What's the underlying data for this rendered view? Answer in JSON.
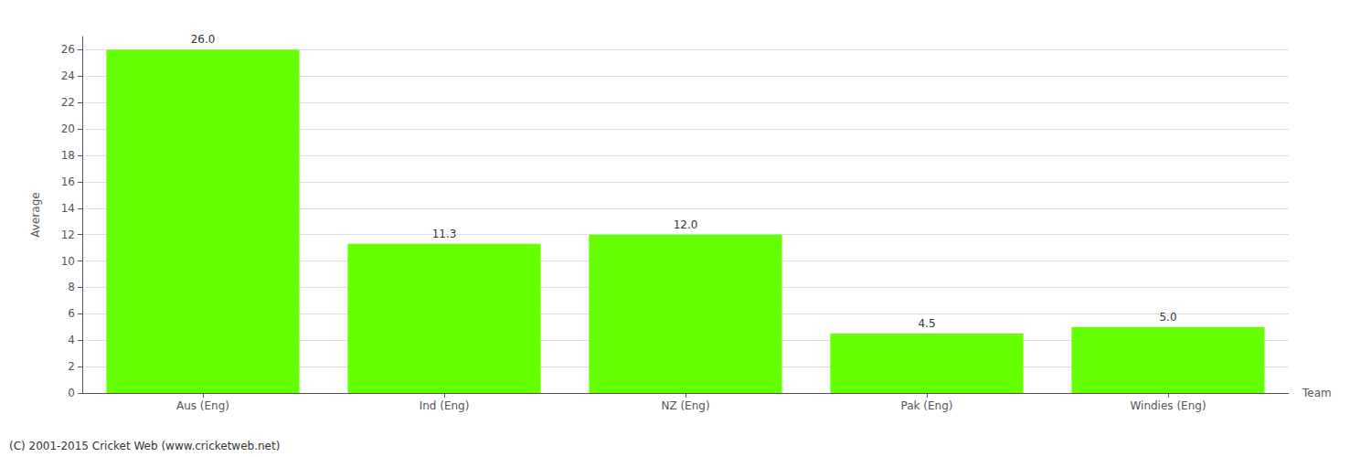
{
  "chart_data": {
    "type": "bar",
    "categories": [
      "Aus (Eng)",
      "Ind (Eng)",
      "NZ (Eng)",
      "Pak (Eng)",
      "Windies (Eng)"
    ],
    "values": [
      26.0,
      11.3,
      12.0,
      4.5,
      5.0
    ],
    "value_labels": [
      "26.0",
      "11.3",
      "12.0",
      "4.5",
      "5.0"
    ],
    "data_labels": true,
    "color": "#66ff00",
    "xlabel": "Team",
    "ylabel": "Average",
    "ylim": [
      0,
      27
    ],
    "yticks": [
      0,
      2,
      4,
      6,
      8,
      10,
      12,
      14,
      16,
      18,
      20,
      22,
      24,
      26
    ],
    "grid": true,
    "annotations": [
      "(C) 2001-2015 Cricket Web (www.cricketweb.net)"
    ]
  }
}
